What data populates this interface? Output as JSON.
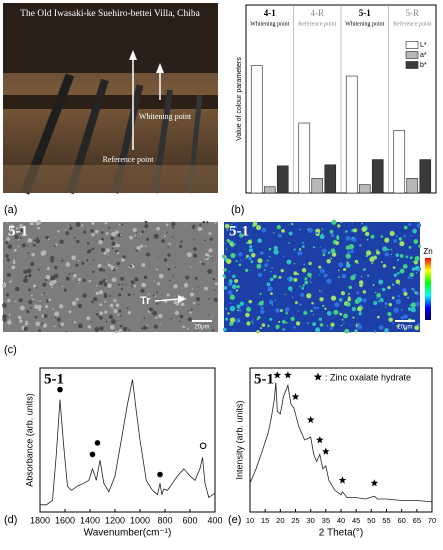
{
  "panels": {
    "a": {
      "label": "(a)",
      "title": "The Old Iwasaki-ke Suehiro-bettei Villa, Chiba",
      "whitening": "Whitening point",
      "reference": "Reference point"
    },
    "b": {
      "label": "(b)"
    },
    "c": {
      "label": "(c)",
      "left_title": "5-1",
      "right_title": "5-1",
      "marker": "Tr",
      "scale_left": "20μm",
      "scale_right": "20μm",
      "colorbar": "Zn"
    },
    "d": {
      "label": "(d)"
    },
    "e": {
      "label": "(e)"
    }
  },
  "chart_data": [
    {
      "type": "bar",
      "ylabel": "Value of colour parameters",
      "categories": [
        "4-1",
        "4-R",
        "5-1",
        "5-R"
      ],
      "category_notes": [
        "Whitening point",
        "Reference point",
        "Whitening point",
        "Reference point"
      ],
      "series": [
        {
          "name": "L*",
          "color": "#ffffff",
          "values": [
            61,
            33.5,
            56,
            30
          ]
        },
        {
          "name": "a*",
          "color": "#b8b8b8",
          "values": [
            3,
            7,
            4,
            7
          ]
        },
        {
          "name": "b*",
          "color": "#3a3a3a",
          "values": [
            13,
            13.5,
            16,
            16
          ]
        }
      ],
      "ylim": [
        0,
        90
      ]
    },
    {
      "type": "line",
      "title": "5-1",
      "xlabel": "Wavenumber(cm⁻¹)",
      "ylabel": "Absorbance (arb. units)",
      "x": [
        1800,
        1750,
        1700,
        1670,
        1640,
        1610,
        1580,
        1550,
        1500,
        1450,
        1410,
        1380,
        1350,
        1320,
        1290,
        1250,
        1200,
        1150,
        1100,
        1060,
        1030,
        1000,
        950,
        900,
        860,
        840,
        825,
        810,
        780,
        740,
        700,
        650,
        600,
        560,
        520,
        500,
        480,
        450,
        420,
        400
      ],
      "values": [
        0.05,
        0.05,
        0.08,
        0.4,
        0.78,
        0.45,
        0.18,
        0.15,
        0.18,
        0.2,
        0.22,
        0.3,
        0.22,
        0.36,
        0.2,
        0.14,
        0.25,
        0.5,
        0.75,
        0.92,
        0.7,
        0.5,
        0.22,
        0.15,
        0.12,
        0.2,
        0.12,
        0.16,
        0.15,
        0.2,
        0.25,
        0.3,
        0.25,
        0.22,
        0.3,
        0.38,
        0.2,
        0.1,
        0.12,
        0.13
      ],
      "markers": {
        "x": [
          1640,
          1380,
          1340,
          840
        ],
        "y": [
          0.85,
          0.4,
          0.48,
          0.26
        ]
      },
      "open_markers": {
        "x": [
          495
        ],
        "y": [
          0.46
        ]
      },
      "xlim": [
        1800,
        400
      ],
      "xticks": [
        1800,
        1600,
        1400,
        1200,
        1000,
        800,
        600,
        400
      ],
      "ylim": [
        0,
        1
      ]
    },
    {
      "type": "line",
      "title": "5-1",
      "xlabel": "2 Theta(°)",
      "ylabel": "Intensity (arb. units)",
      "legend": ": Zinc oxalate hydrate",
      "x": [
        10,
        12,
        14,
        16,
        17,
        18,
        18.5,
        19,
        20,
        21,
        22.5,
        23.5,
        24.5,
        26,
        28,
        30,
        31,
        32,
        33,
        34,
        35,
        36,
        38,
        40,
        40.5,
        42,
        45,
        48,
        51,
        52,
        55,
        60,
        65,
        70
      ],
      "values": [
        0.2,
        0.3,
        0.42,
        0.55,
        0.65,
        0.78,
        0.9,
        0.7,
        0.68,
        0.8,
        0.88,
        0.75,
        0.72,
        0.6,
        0.5,
        0.52,
        0.4,
        0.35,
        0.4,
        0.3,
        0.32,
        0.22,
        0.15,
        0.12,
        0.14,
        0.1,
        0.1,
        0.09,
        0.11,
        0.09,
        0.09,
        0.08,
        0.08,
        0.07
      ],
      "stars": {
        "x": [
          19,
          22.5,
          25,
          30,
          33,
          35,
          40.5,
          51
        ],
        "y": [
          0.95,
          0.95,
          0.8,
          0.64,
          0.5,
          0.42,
          0.22,
          0.2
        ]
      },
      "xlim": [
        10,
        70
      ],
      "xticks": [
        10,
        15,
        20,
        25,
        30,
        35,
        40,
        45,
        50,
        55,
        60,
        65,
        70
      ],
      "ylim": [
        0,
        1
      ]
    }
  ]
}
